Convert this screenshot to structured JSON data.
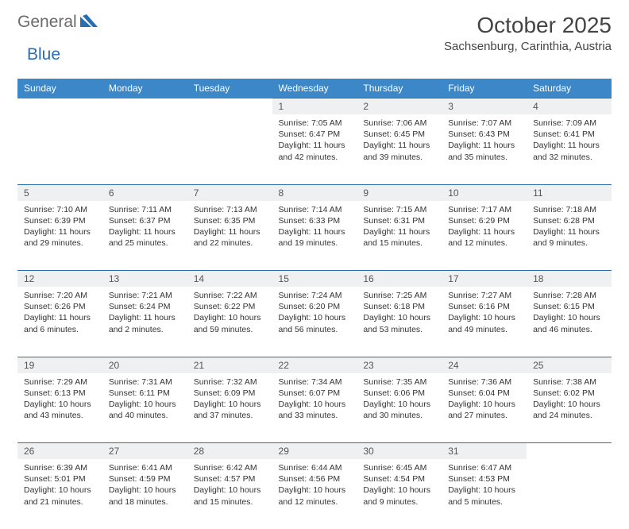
{
  "brand": {
    "part1": "General",
    "part2": "Blue"
  },
  "title": "October 2025",
  "location": "Sachsenburg, Carinthia, Austria",
  "colors": {
    "header_bg": "#3b87c8",
    "border": "#2a6db3",
    "daynum_bg": "#eef0f2",
    "text": "#333333",
    "brand_gray": "#6b6b6b",
    "brand_blue": "#2a6db3"
  },
  "fonts": {
    "title_size": 28,
    "location_size": 15,
    "header_size": 12,
    "body_size": 10.5
  },
  "weekdays": [
    "Sunday",
    "Monday",
    "Tuesday",
    "Wednesday",
    "Thursday",
    "Friday",
    "Saturday"
  ],
  "weeks": [
    [
      null,
      null,
      null,
      {
        "n": "1",
        "sunrise": "7:05 AM",
        "sunset": "6:47 PM",
        "daylight": "11 hours and 42 minutes."
      },
      {
        "n": "2",
        "sunrise": "7:06 AM",
        "sunset": "6:45 PM",
        "daylight": "11 hours and 39 minutes."
      },
      {
        "n": "3",
        "sunrise": "7:07 AM",
        "sunset": "6:43 PM",
        "daylight": "11 hours and 35 minutes."
      },
      {
        "n": "4",
        "sunrise": "7:09 AM",
        "sunset": "6:41 PM",
        "daylight": "11 hours and 32 minutes."
      }
    ],
    [
      {
        "n": "5",
        "sunrise": "7:10 AM",
        "sunset": "6:39 PM",
        "daylight": "11 hours and 29 minutes."
      },
      {
        "n": "6",
        "sunrise": "7:11 AM",
        "sunset": "6:37 PM",
        "daylight": "11 hours and 25 minutes."
      },
      {
        "n": "7",
        "sunrise": "7:13 AM",
        "sunset": "6:35 PM",
        "daylight": "11 hours and 22 minutes."
      },
      {
        "n": "8",
        "sunrise": "7:14 AM",
        "sunset": "6:33 PM",
        "daylight": "11 hours and 19 minutes."
      },
      {
        "n": "9",
        "sunrise": "7:15 AM",
        "sunset": "6:31 PM",
        "daylight": "11 hours and 15 minutes."
      },
      {
        "n": "10",
        "sunrise": "7:17 AM",
        "sunset": "6:29 PM",
        "daylight": "11 hours and 12 minutes."
      },
      {
        "n": "11",
        "sunrise": "7:18 AM",
        "sunset": "6:28 PM",
        "daylight": "11 hours and 9 minutes."
      }
    ],
    [
      {
        "n": "12",
        "sunrise": "7:20 AM",
        "sunset": "6:26 PM",
        "daylight": "11 hours and 6 minutes."
      },
      {
        "n": "13",
        "sunrise": "7:21 AM",
        "sunset": "6:24 PM",
        "daylight": "11 hours and 2 minutes."
      },
      {
        "n": "14",
        "sunrise": "7:22 AM",
        "sunset": "6:22 PM",
        "daylight": "10 hours and 59 minutes."
      },
      {
        "n": "15",
        "sunrise": "7:24 AM",
        "sunset": "6:20 PM",
        "daylight": "10 hours and 56 minutes."
      },
      {
        "n": "16",
        "sunrise": "7:25 AM",
        "sunset": "6:18 PM",
        "daylight": "10 hours and 53 minutes."
      },
      {
        "n": "17",
        "sunrise": "7:27 AM",
        "sunset": "6:16 PM",
        "daylight": "10 hours and 49 minutes."
      },
      {
        "n": "18",
        "sunrise": "7:28 AM",
        "sunset": "6:15 PM",
        "daylight": "10 hours and 46 minutes."
      }
    ],
    [
      {
        "n": "19",
        "sunrise": "7:29 AM",
        "sunset": "6:13 PM",
        "daylight": "10 hours and 43 minutes."
      },
      {
        "n": "20",
        "sunrise": "7:31 AM",
        "sunset": "6:11 PM",
        "daylight": "10 hours and 40 minutes."
      },
      {
        "n": "21",
        "sunrise": "7:32 AM",
        "sunset": "6:09 PM",
        "daylight": "10 hours and 37 minutes."
      },
      {
        "n": "22",
        "sunrise": "7:34 AM",
        "sunset": "6:07 PM",
        "daylight": "10 hours and 33 minutes."
      },
      {
        "n": "23",
        "sunrise": "7:35 AM",
        "sunset": "6:06 PM",
        "daylight": "10 hours and 30 minutes."
      },
      {
        "n": "24",
        "sunrise": "7:36 AM",
        "sunset": "6:04 PM",
        "daylight": "10 hours and 27 minutes."
      },
      {
        "n": "25",
        "sunrise": "7:38 AM",
        "sunset": "6:02 PM",
        "daylight": "10 hours and 24 minutes."
      }
    ],
    [
      {
        "n": "26",
        "sunrise": "6:39 AM",
        "sunset": "5:01 PM",
        "daylight": "10 hours and 21 minutes."
      },
      {
        "n": "27",
        "sunrise": "6:41 AM",
        "sunset": "4:59 PM",
        "daylight": "10 hours and 18 minutes."
      },
      {
        "n": "28",
        "sunrise": "6:42 AM",
        "sunset": "4:57 PM",
        "daylight": "10 hours and 15 minutes."
      },
      {
        "n": "29",
        "sunrise": "6:44 AM",
        "sunset": "4:56 PM",
        "daylight": "10 hours and 12 minutes."
      },
      {
        "n": "30",
        "sunrise": "6:45 AM",
        "sunset": "4:54 PM",
        "daylight": "10 hours and 9 minutes."
      },
      {
        "n": "31",
        "sunrise": "6:47 AM",
        "sunset": "4:53 PM",
        "daylight": "10 hours and 5 minutes."
      },
      null
    ]
  ],
  "labels": {
    "sunrise": "Sunrise:",
    "sunset": "Sunset:",
    "daylight": "Daylight:"
  }
}
